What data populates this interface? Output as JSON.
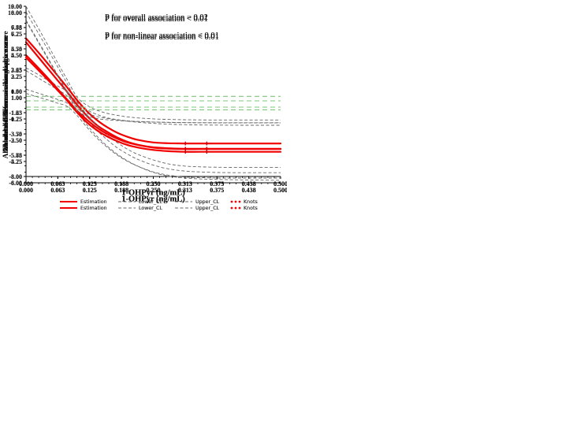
{
  "colors": {
    "estimation": "#f20000",
    "confidence_limit": "#676767",
    "zero_reference": "#7dc87d",
    "axis": "#000000",
    "text": "#111111",
    "legend_text": "#2a2a2a",
    "background": "#ffffff"
  },
  "shared": {
    "xlabel": "1-OHPyr (ng/mL)",
    "x": [
      0,
      0.02,
      0.04,
      0.06,
      0.08,
      0.1,
      0.12,
      0.14,
      0.16,
      0.18,
      0.2,
      0.22,
      0.25,
      0.28,
      0.31,
      0.34,
      0.38,
      0.42,
      0.46,
      0.5
    ],
    "xlim": [
      0,
      0.5
    ],
    "xticks": [
      0,
      0.0625,
      0.125,
      0.1875,
      0.25,
      0.3125,
      0.375,
      0.4375,
      0.5
    ],
    "xtick_labels": [
      "0.000",
      "0.063",
      "0.125",
      "0.188",
      "0.250",
      "0.313",
      "0.375",
      "0.438",
      "0.500"
    ],
    "legend": [
      {
        "label": "Estimation",
        "style": "solid-red-line"
      },
      {
        "label": "Lower_CL",
        "style": "dashed-gray-line"
      },
      {
        "label": "Upper_CL",
        "style": "dashed-gray-line"
      },
      {
        "label": "Knots",
        "style": "red-dots"
      }
    ],
    "grid": false,
    "legend_position": "bottom-center"
  },
  "chart_data": [
    {
      "id": "motor",
      "type": "line",
      "ylabel": "Absolute differences in motor score",
      "annotations": [
        "P for overall association < 0.01",
        "P for non-linear association < 0.01"
      ],
      "ylim": [
        -8,
        10
      ],
      "yticks": [
        10.0,
        7.75,
        5.5,
        3.25,
        1.0,
        -1.25,
        -3.5,
        -5.75,
        -8.0
      ],
      "ytick_labels": [
        "10.00",
        "7.75",
        "5.50",
        "3.25",
        "1.00",
        "-1.25",
        "-3.50",
        "-5.75",
        "-8.00"
      ],
      "reference_y": 0,
      "knots_x": [
        0.313,
        0.355
      ],
      "series": [
        {
          "name": "Estimation",
          "values": [
            6.2,
            4.9,
            3.6,
            2.3,
            1.0,
            -0.4,
            -1.6,
            -2.6,
            -3.3,
            -3.9,
            -4.35,
            -4.65,
            -4.95,
            -5.05,
            -5.1,
            -5.1,
            -5.1,
            -5.1,
            -5.1,
            -5.1
          ]
        },
        {
          "name": "Lower_CL",
          "values": [
            3.2,
            2.55,
            1.9,
            1.25,
            0.55,
            -0.6,
            -1.95,
            -3.15,
            -4.15,
            -5.0,
            -5.65,
            -6.2,
            -6.8,
            -7.2,
            -7.42,
            -7.52,
            -7.58,
            -7.6,
            -7.6,
            -7.6
          ]
        },
        {
          "name": "Upper_CL",
          "values": [
            9.4,
            7.55,
            5.7,
            3.8,
            1.9,
            -0.05,
            -0.95,
            -1.45,
            -1.8,
            -2.0,
            -2.15,
            -2.27,
            -2.38,
            -2.47,
            -2.52,
            -2.55,
            -2.57,
            -2.58,
            -2.58,
            -2.58
          ]
        }
      ]
    },
    {
      "id": "adaptive",
      "type": "line",
      "ylabel": "Absolute differences in adaptive score",
      "annotations": [
        "P for overall association < 0.01",
        "P for non-linear association < 0.01"
      ],
      "ylim": [
        -8,
        9
      ],
      "yticks": [
        9.0,
        6.88,
        4.75,
        2.63,
        0.5,
        -1.63,
        -3.75,
        -5.88,
        -8.0
      ],
      "ytick_labels": [
        "9.00",
        "6.88",
        "4.75",
        "2.63",
        "0.50",
        "-1.63",
        "-3.75",
        "-5.88",
        "-8.00"
      ],
      "reference_y": 0,
      "knots_x": [
        0.313,
        0.355
      ],
      "series": [
        {
          "name": "Estimation",
          "values": [
            5.8,
            4.65,
            3.45,
            2.2,
            0.95,
            -0.35,
            -1.5,
            -2.4,
            -3.1,
            -3.65,
            -4.05,
            -4.35,
            -4.6,
            -4.68,
            -4.7,
            -4.7,
            -4.7,
            -4.7,
            -4.7,
            -4.7
          ]
        },
        {
          "name": "Lower_CL",
          "values": [
            2.85,
            2.3,
            1.7,
            1.1,
            0.5,
            -0.6,
            -1.85,
            -2.95,
            -3.9,
            -4.65,
            -5.3,
            -5.8,
            -6.35,
            -6.75,
            -6.95,
            -7.03,
            -7.08,
            -7.1,
            -7.1,
            -7.1
          ]
        },
        {
          "name": "Upper_CL",
          "values": [
            9.0,
            7.2,
            5.4,
            3.55,
            1.75,
            -0.05,
            -0.9,
            -1.4,
            -1.7,
            -1.9,
            -2.05,
            -2.15,
            -2.25,
            -2.3,
            -2.33,
            -2.35,
            -2.36,
            -2.36,
            -2.36,
            -2.36
          ]
        }
      ]
    },
    {
      "id": "language",
      "type": "line",
      "ylabel": "Absolute differences in language score",
      "annotations": [
        "P for overall association = 0.01",
        "P for non-linear association < 0.01"
      ],
      "ylim": [
        -8,
        10
      ],
      "yticks": [
        10.0,
        7.75,
        5.5,
        3.25,
        1.0,
        -1.25,
        -3.5,
        -5.75,
        -8.0
      ],
      "ytick_labels": [
        "10.00",
        "7.75",
        "5.50",
        "3.25",
        "1.00",
        "-1.25",
        "-3.50",
        "-5.75",
        "-8.00"
      ],
      "reference_y": 0,
      "knots_x": [
        0.313,
        0.355
      ],
      "series": [
        {
          "name": "Estimation",
          "values": [
            5.5,
            4.4,
            3.25,
            2.05,
            0.85,
            -0.35,
            -1.35,
            -2.2,
            -2.85,
            -3.35,
            -3.75,
            -4.0,
            -4.25,
            -4.35,
            -4.4,
            -4.4,
            -4.4,
            -4.4,
            -4.4,
            -4.4
          ]
        },
        {
          "name": "Lower_CL",
          "values": [
            1.9,
            1.55,
            1.2,
            0.85,
            0.45,
            -0.55,
            -1.9,
            -3.1,
            -4.15,
            -5.0,
            -5.7,
            -6.25,
            -6.85,
            -7.2,
            -7.38,
            -7.45,
            -7.5,
            -7.5,
            -7.5,
            -7.5
          ]
        },
        {
          "name": "Upper_CL",
          "values": [
            9.2,
            7.35,
            5.5,
            3.6,
            1.7,
            -0.05,
            -0.65,
            -1.0,
            -1.2,
            -1.35,
            -1.45,
            -1.52,
            -1.58,
            -1.62,
            -1.64,
            -1.65,
            -1.65,
            -1.65,
            -1.65,
            -1.65
          ]
        }
      ]
    },
    {
      "id": "social",
      "type": "line",
      "ylabel": "Absolute differences in social score",
      "annotations": [
        "P for overall association = 0.02",
        "P for non-linear association < 0.01"
      ],
      "ylim": [
        -6,
        8
      ],
      "yticks": [
        8.0,
        6.25,
        4.5,
        2.75,
        1.0,
        -0.75,
        -2.5,
        -4.25,
        -6.0
      ],
      "ytick_labels": [
        "8.00",
        "6.25",
        "4.50",
        "2.75",
        "1.00",
        "-0.75",
        "-2.50",
        "-4.25",
        "-6.00"
      ],
      "reference_y": 0,
      "knots_x": [
        0.313,
        0.355
      ],
      "series": [
        {
          "name": "Estimation",
          "values": [
            4.3,
            3.45,
            2.6,
            1.7,
            0.8,
            -0.2,
            -1.05,
            -1.7,
            -2.2,
            -2.6,
            -2.9,
            -3.1,
            -3.3,
            -3.4,
            -3.45,
            -3.45,
            -3.45,
            -3.45,
            -3.45,
            -3.45
          ]
        },
        {
          "name": "Lower_CL",
          "values": [
            1.35,
            1.1,
            0.85,
            0.58,
            0.3,
            -0.45,
            -1.45,
            -2.35,
            -3.1,
            -3.75,
            -4.25,
            -4.65,
            -5.15,
            -5.45,
            -5.6,
            -5.68,
            -5.73,
            -5.76,
            -5.78,
            -5.8
          ]
        },
        {
          "name": "Upper_CL",
          "values": [
            7.3,
            5.85,
            4.4,
            2.95,
            1.45,
            -0.05,
            -0.5,
            -0.72,
            -0.82,
            -0.88,
            -0.93,
            -0.96,
            -1.0,
            -1.03,
            -1.05,
            -1.06,
            -1.07,
            -1.07,
            -1.07,
            -1.07
          ]
        }
      ]
    }
  ]
}
